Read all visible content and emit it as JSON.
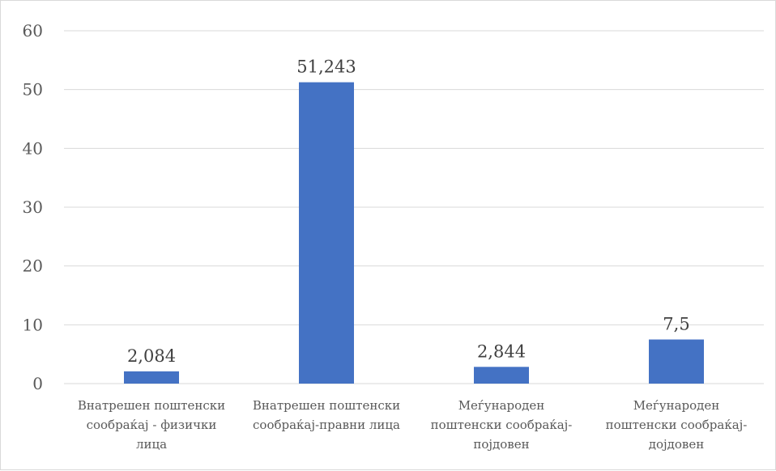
{
  "chart_data": {
    "type": "bar",
    "categories": [
      [
        "Внатрешен поштенски",
        "сообраќај - физички",
        "лица"
      ],
      [
        "Внатрешен поштенски",
        "сообраќај-правни лица"
      ],
      [
        "Меѓународен",
        "поштенски сообраќај-",
        "појдовен"
      ],
      [
        "Меѓународен",
        "поштенски сообраќај-",
        "дојдовен"
      ]
    ],
    "values": [
      2.084,
      51.243,
      2.844,
      7.5
    ],
    "data_labels": [
      "2,084",
      "51,243",
      "2,844",
      "7,5"
    ],
    "yticks": [
      0,
      10,
      20,
      30,
      40,
      50,
      60
    ],
    "ylim": [
      0,
      60
    ],
    "grid": true,
    "bar_color": "#4472c4"
  }
}
